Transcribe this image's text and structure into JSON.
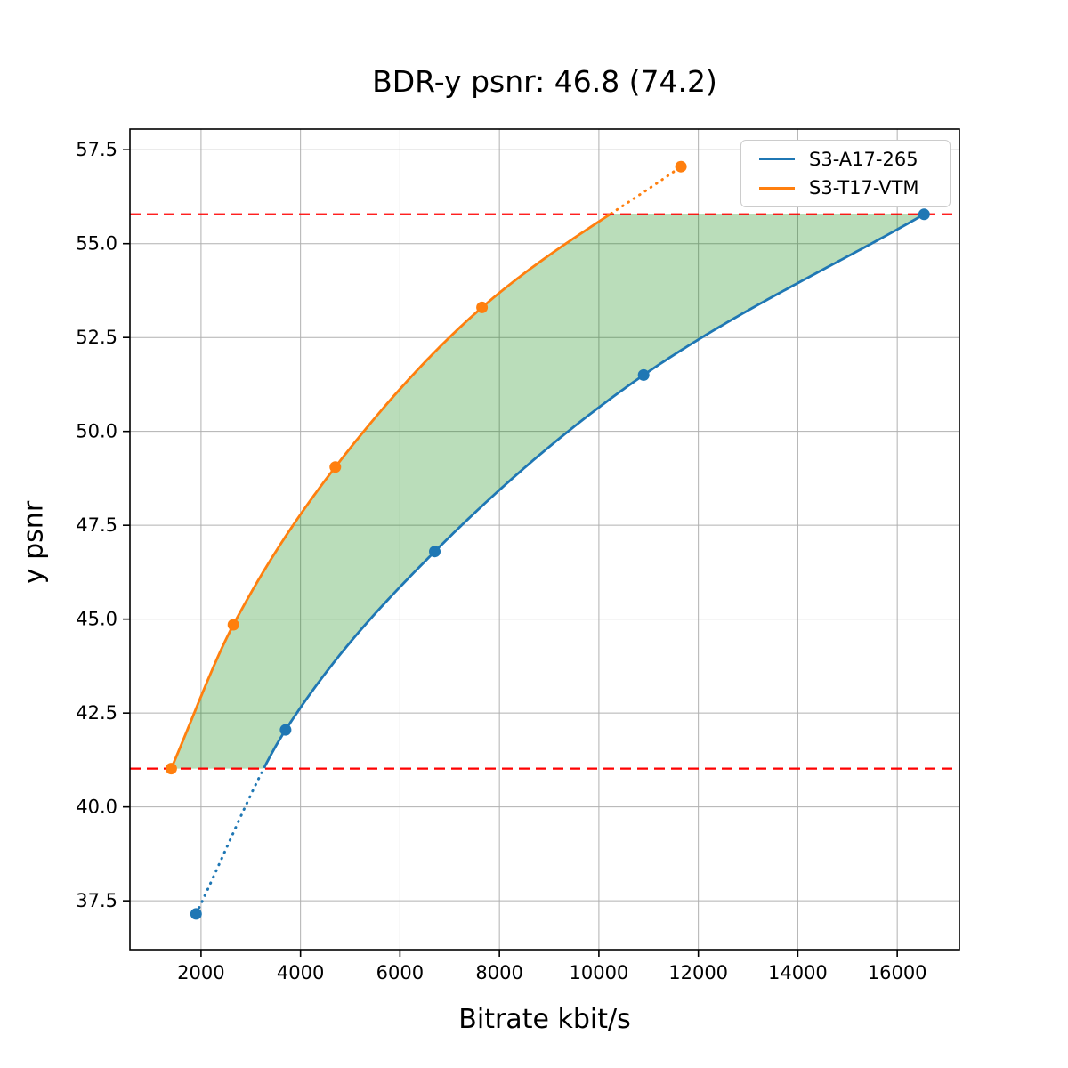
{
  "title": "BDR-y psnr: 46.8 (74.2)",
  "chart_data": {
    "type": "line",
    "title": "BDR-y psnr: 46.8 (74.2)",
    "xlabel": "Bitrate kbit/s",
    "ylabel": "y psnr",
    "xlim": [
      570,
      17250
    ],
    "ylim": [
      36.2,
      58.05
    ],
    "xticks": [
      2000,
      4000,
      6000,
      8000,
      10000,
      12000,
      14000,
      16000
    ],
    "yticks": [
      37.5,
      40.0,
      42.5,
      45.0,
      47.5,
      50.0,
      52.5,
      55.0,
      57.5
    ],
    "grid": true,
    "grid_color": "#b0b0b0",
    "legend_position": "upper right",
    "series": [
      {
        "name": "S3-A17-265",
        "color": "#1f77b4",
        "x": [
          1900,
          3700,
          6700,
          10900,
          16540
        ],
        "y": [
          37.15,
          42.05,
          46.8,
          51.5,
          55.78
        ],
        "note": "segment below overlap range drawn dotted"
      },
      {
        "name": "S3-T17-VTM",
        "color": "#ff7f0e",
        "x": [
          1400,
          2650,
          4700,
          7650,
          11650
        ],
        "y": [
          41.02,
          44.85,
          49.05,
          53.3,
          57.05
        ],
        "note": "segment above overlap range drawn dotted"
      }
    ],
    "overlap_hlines": {
      "values": [
        41.02,
        55.78
      ],
      "color": "#ff0000",
      "style": "dashed"
    },
    "fill_between": {
      "color": "#008000",
      "alpha": 0.27,
      "y_range": [
        41.02,
        55.78
      ]
    }
  }
}
